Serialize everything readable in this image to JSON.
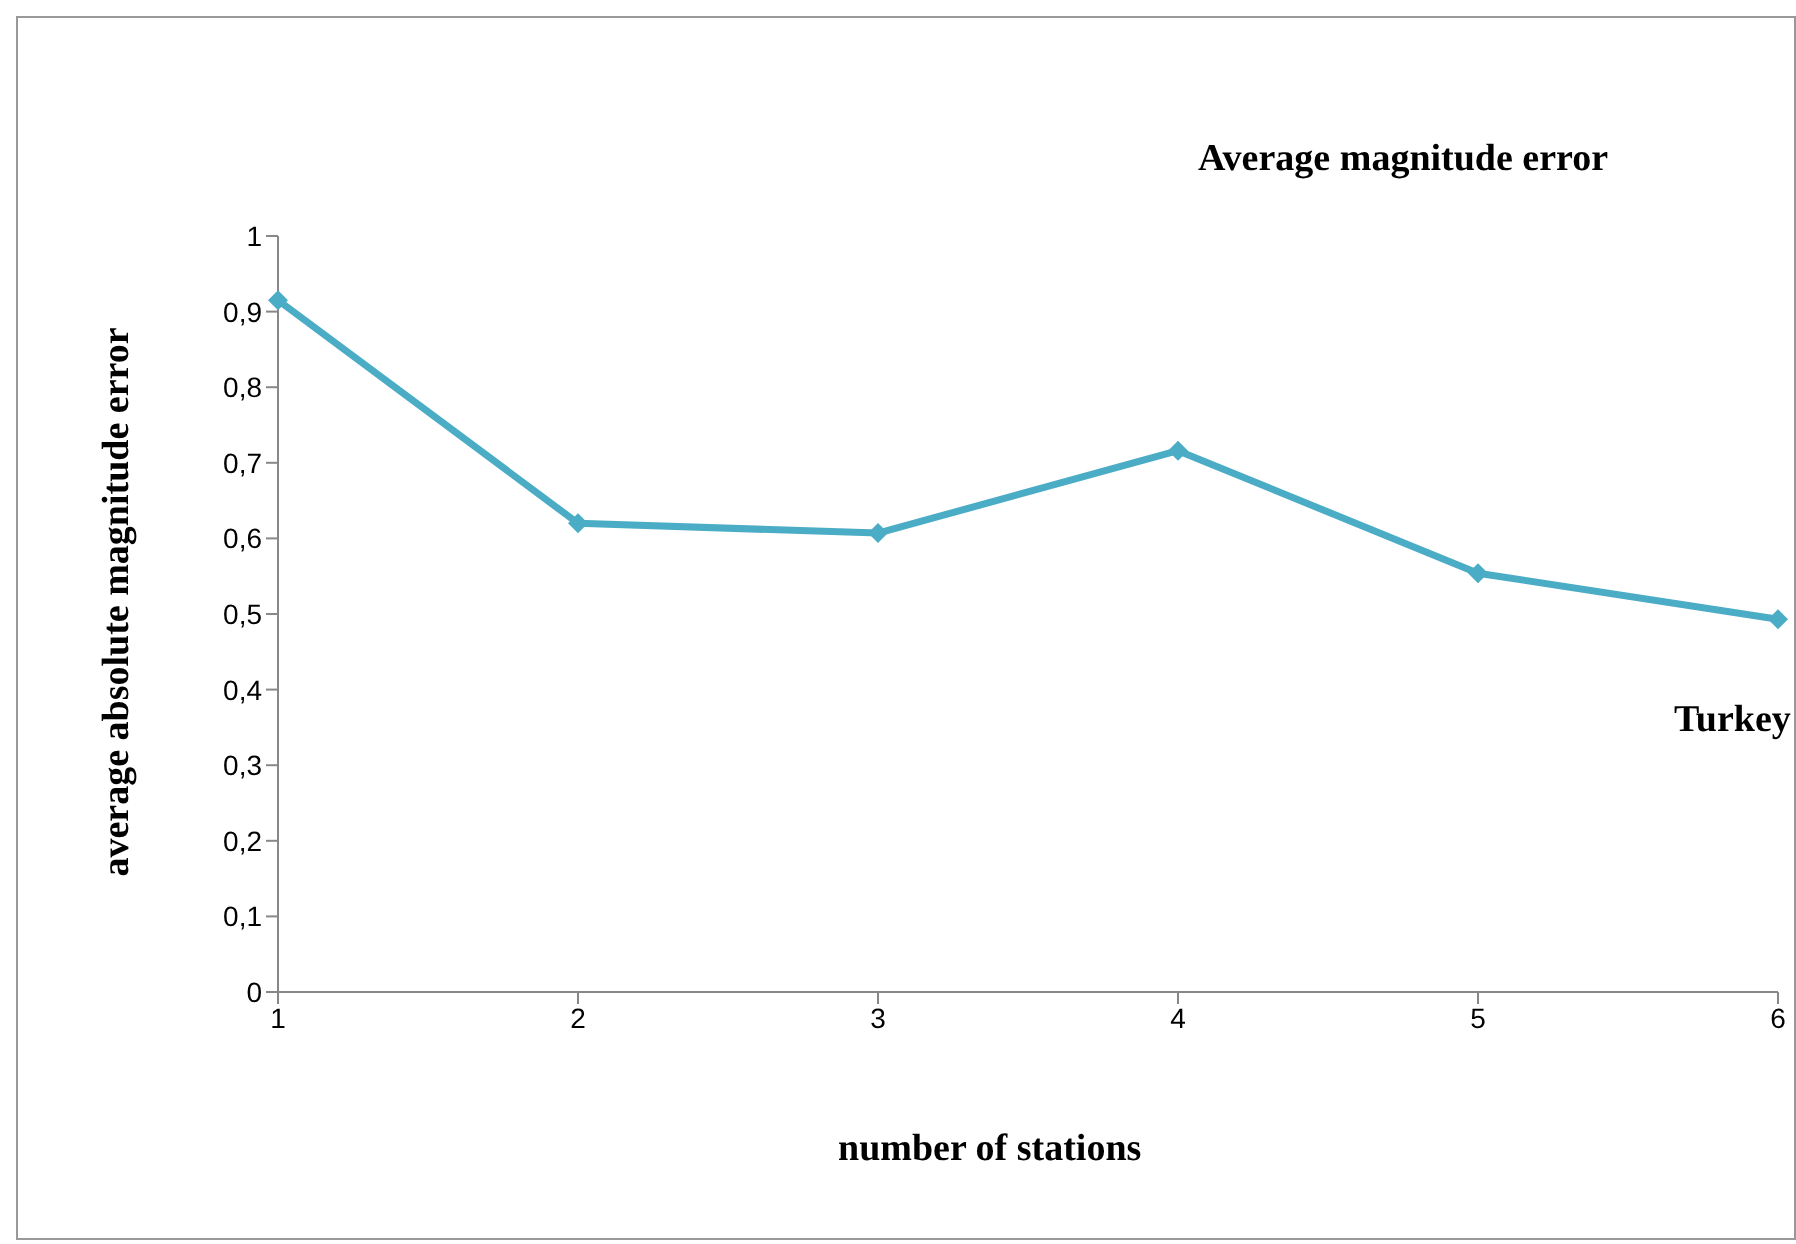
{
  "chart_data": {
    "type": "line",
    "title": "Average magnitude error",
    "xlabel": "number of stations",
    "ylabel": "average absolute magnitude error",
    "categories": [
      "1",
      "2",
      "3",
      "4",
      "5",
      "6"
    ],
    "series": [
      {
        "name": "Turkey",
        "color": "#4bacc6",
        "values": [
          0.915,
          0.62,
          0.607,
          0.716,
          0.554,
          0.493
        ]
      }
    ],
    "ylim": [
      0,
      1
    ],
    "yticks": [
      {
        "value": 0,
        "label": "0"
      },
      {
        "value": 0.1,
        "label": "0,1"
      },
      {
        "value": 0.2,
        "label": "0,2"
      },
      {
        "value": 0.3,
        "label": "0,3"
      },
      {
        "value": 0.4,
        "label": "0,4"
      },
      {
        "value": 0.5,
        "label": "0,5"
      },
      {
        "value": 0.6,
        "label": "0,6"
      },
      {
        "value": 0.7,
        "label": "0,7"
      },
      {
        "value": 0.8,
        "label": "0,8"
      },
      {
        "value": 0.9,
        "label": "0,9"
      },
      {
        "value": 1,
        "label": "1"
      }
    ],
    "grid": false,
    "legend": false,
    "marker": "diamond",
    "line_style": "solid"
  }
}
